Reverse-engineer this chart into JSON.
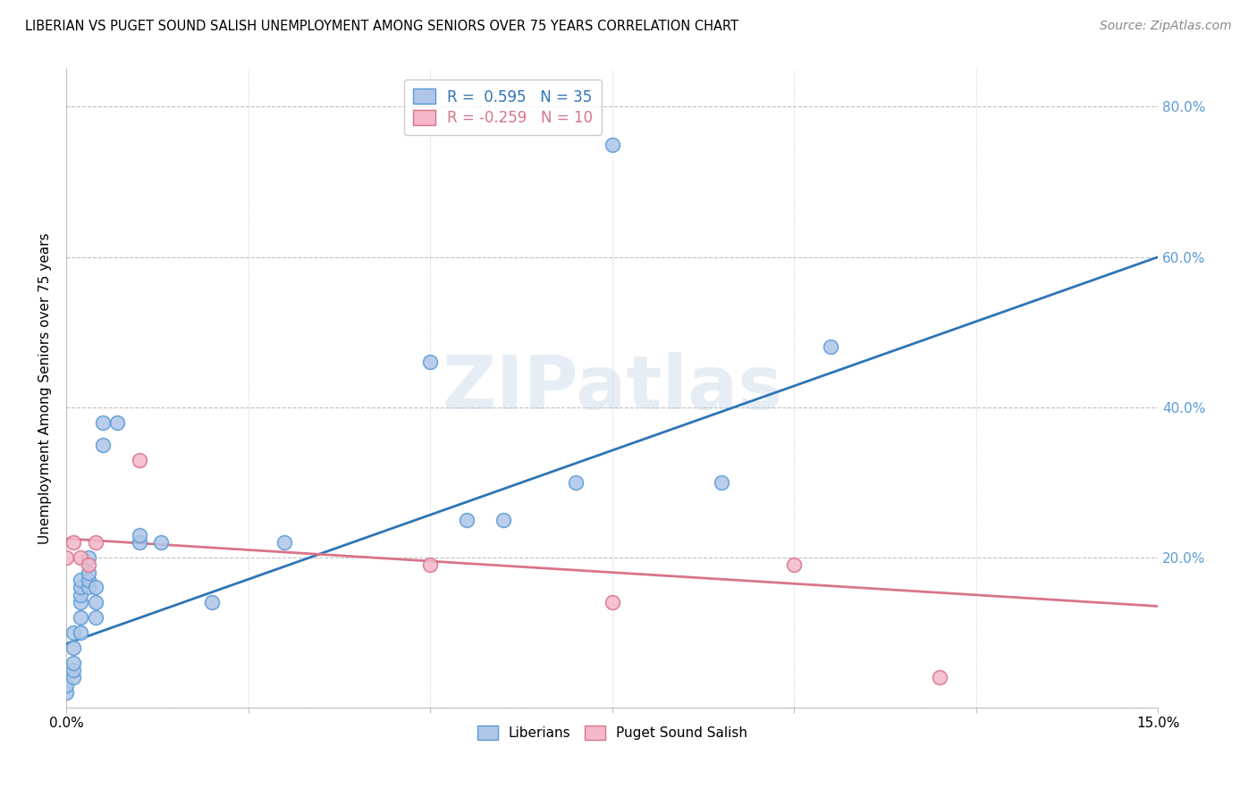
{
  "title": "LIBERIAN VS PUGET SOUND SALISH UNEMPLOYMENT AMONG SENIORS OVER 75 YEARS CORRELATION CHART",
  "source": "Source: ZipAtlas.com",
  "ylabel_label": "Unemployment Among Seniors over 75 years",
  "xlim": [
    0.0,
    0.15
  ],
  "ylim": [
    0.0,
    0.85
  ],
  "y_ticks": [
    0.0,
    0.2,
    0.4,
    0.6,
    0.8
  ],
  "y_tick_labels_right": [
    "",
    "20.0%",
    "40.0%",
    "60.0%",
    "80.0%"
  ],
  "liberian_color": "#aec6e8",
  "liberian_edge_color": "#5b9bd5",
  "puget_color": "#f4b8c8",
  "puget_edge_color": "#d9748a",
  "liberian_line_color": "#2e75b6",
  "puget_line_color": "#d9748a",
  "liberian_R": 0.595,
  "liberian_N": 35,
  "puget_R": -0.259,
  "puget_N": 10,
  "watermark": "ZIPatlas",
  "liberian_x": [
    0.0,
    0.0,
    0.001,
    0.001,
    0.001,
    0.001,
    0.001,
    0.002,
    0.002,
    0.002,
    0.002,
    0.002,
    0.002,
    0.003,
    0.003,
    0.003,
    0.003,
    0.004,
    0.004,
    0.004,
    0.005,
    0.005,
    0.007,
    0.01,
    0.01,
    0.013,
    0.02,
    0.03,
    0.05,
    0.055,
    0.06,
    0.07,
    0.075,
    0.09,
    0.105
  ],
  "liberian_y": [
    0.02,
    0.03,
    0.04,
    0.05,
    0.06,
    0.08,
    0.1,
    0.1,
    0.12,
    0.14,
    0.15,
    0.16,
    0.17,
    0.16,
    0.17,
    0.18,
    0.2,
    0.12,
    0.14,
    0.16,
    0.35,
    0.38,
    0.38,
    0.22,
    0.23,
    0.22,
    0.14,
    0.22,
    0.46,
    0.25,
    0.25,
    0.3,
    0.75,
    0.3,
    0.48
  ],
  "puget_x": [
    0.0,
    0.001,
    0.002,
    0.003,
    0.004,
    0.01,
    0.05,
    0.075,
    0.1,
    0.12
  ],
  "puget_y": [
    0.2,
    0.22,
    0.2,
    0.19,
    0.22,
    0.33,
    0.19,
    0.14,
    0.19,
    0.04
  ],
  "liberian_line_x0": 0.0,
  "liberian_line_y0": 0.085,
  "liberian_line_x1": 0.15,
  "liberian_line_y1": 0.6,
  "puget_line_x0": 0.0,
  "puget_line_y0": 0.225,
  "puget_line_x1": 0.15,
  "puget_line_y1": 0.135
}
